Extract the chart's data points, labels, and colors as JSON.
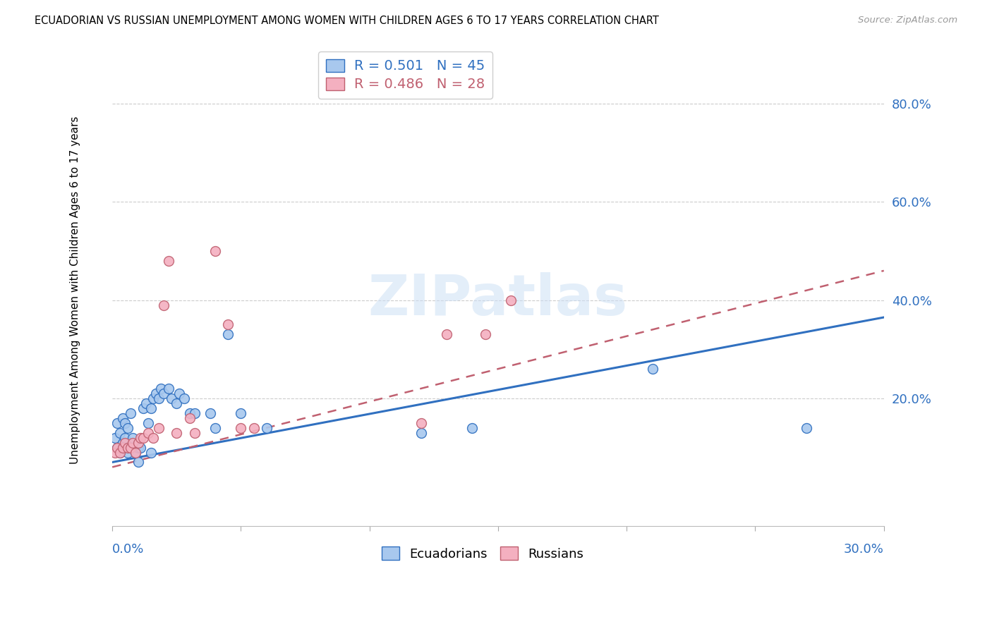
{
  "title": "ECUADORIAN VS RUSSIAN UNEMPLOYMENT AMONG WOMEN WITH CHILDREN AGES 6 TO 17 YEARS CORRELATION CHART",
  "source": "Source: ZipAtlas.com",
  "ylabel": "Unemployment Among Women with Children Ages 6 to 17 years",
  "ytick_labels": [
    "80.0%",
    "60.0%",
    "40.0%",
    "20.0%"
  ],
  "ytick_vals": [
    0.8,
    0.6,
    0.4,
    0.2
  ],
  "legend_ecu": "R = 0.501   N = 45",
  "legend_rus": "R = 0.486   N = 28",
  "ecu_color": "#a8c8ee",
  "rus_color": "#f4b0c0",
  "ecu_line_color": "#3070c0",
  "rus_line_color": "#c06070",
  "watermark": "ZIPatlas",
  "xmin": 0.0,
  "xmax": 0.3,
  "ymin": -0.06,
  "ymax": 0.9,
  "ecu_x": [
    0.001,
    0.002,
    0.002,
    0.003,
    0.003,
    0.004,
    0.004,
    0.005,
    0.005,
    0.005,
    0.006,
    0.006,
    0.007,
    0.007,
    0.008,
    0.009,
    0.01,
    0.01,
    0.011,
    0.012,
    0.013,
    0.014,
    0.015,
    0.015,
    0.016,
    0.017,
    0.018,
    0.019,
    0.02,
    0.022,
    0.023,
    0.025,
    0.026,
    0.028,
    0.03,
    0.032,
    0.038,
    0.04,
    0.045,
    0.05,
    0.06,
    0.12,
    0.14,
    0.21,
    0.27
  ],
  "ecu_y": [
    0.12,
    0.1,
    0.15,
    0.09,
    0.13,
    0.11,
    0.16,
    0.1,
    0.12,
    0.15,
    0.09,
    0.14,
    0.1,
    0.17,
    0.12,
    0.09,
    0.07,
    0.1,
    0.1,
    0.18,
    0.19,
    0.15,
    0.18,
    0.09,
    0.2,
    0.21,
    0.2,
    0.22,
    0.21,
    0.22,
    0.2,
    0.19,
    0.21,
    0.2,
    0.17,
    0.17,
    0.17,
    0.14,
    0.33,
    0.17,
    0.14,
    0.13,
    0.14,
    0.26,
    0.14
  ],
  "rus_x": [
    0.001,
    0.002,
    0.003,
    0.004,
    0.005,
    0.006,
    0.007,
    0.008,
    0.009,
    0.01,
    0.011,
    0.012,
    0.014,
    0.016,
    0.018,
    0.02,
    0.022,
    0.025,
    0.03,
    0.032,
    0.04,
    0.045,
    0.05,
    0.055,
    0.12,
    0.13,
    0.145,
    0.155
  ],
  "rus_y": [
    0.09,
    0.1,
    0.09,
    0.1,
    0.11,
    0.1,
    0.1,
    0.11,
    0.09,
    0.11,
    0.12,
    0.12,
    0.13,
    0.12,
    0.14,
    0.39,
    0.48,
    0.13,
    0.16,
    0.13,
    0.5,
    0.35,
    0.14,
    0.14,
    0.15,
    0.33,
    0.33,
    0.4
  ],
  "ecu_trend_x": [
    0.0,
    0.3
  ],
  "ecu_trend_y": [
    0.07,
    0.365
  ],
  "rus_trend_x": [
    0.0,
    0.3
  ],
  "rus_trend_y": [
    0.06,
    0.46
  ]
}
